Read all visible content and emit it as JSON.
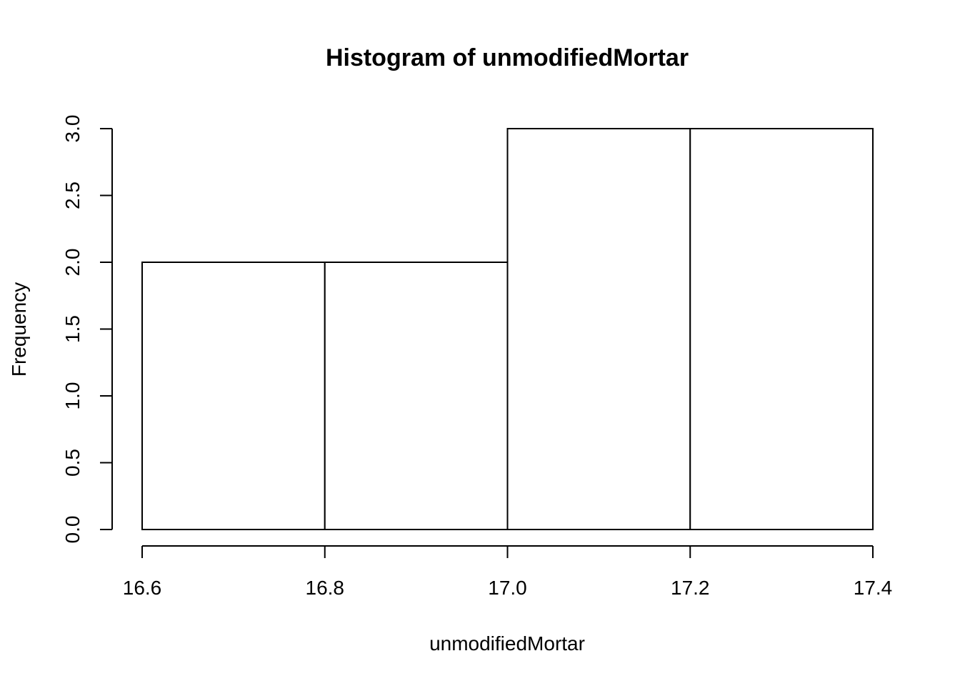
{
  "chart_data": {
    "type": "bar",
    "title": "Histogram of unmodifiedMortar",
    "xlabel": "unmodifiedMortar",
    "ylabel": "Frequency",
    "bins": [
      {
        "start": 16.6,
        "end": 16.8,
        "count": 2
      },
      {
        "start": 16.8,
        "end": 17.0,
        "count": 2
      },
      {
        "start": 17.0,
        "end": 17.2,
        "count": 3
      },
      {
        "start": 17.2,
        "end": 17.4,
        "count": 3
      }
    ],
    "xlim": [
      16.6,
      17.4
    ],
    "ylim": [
      0,
      3
    ],
    "x_ticks": [
      "16.6",
      "16.8",
      "17.0",
      "17.2",
      "17.4"
    ],
    "y_ticks": [
      "0.0",
      "0.5",
      "1.0",
      "1.5",
      "2.0",
      "2.5",
      "3.0"
    ],
    "grid": false,
    "legend": "none"
  }
}
